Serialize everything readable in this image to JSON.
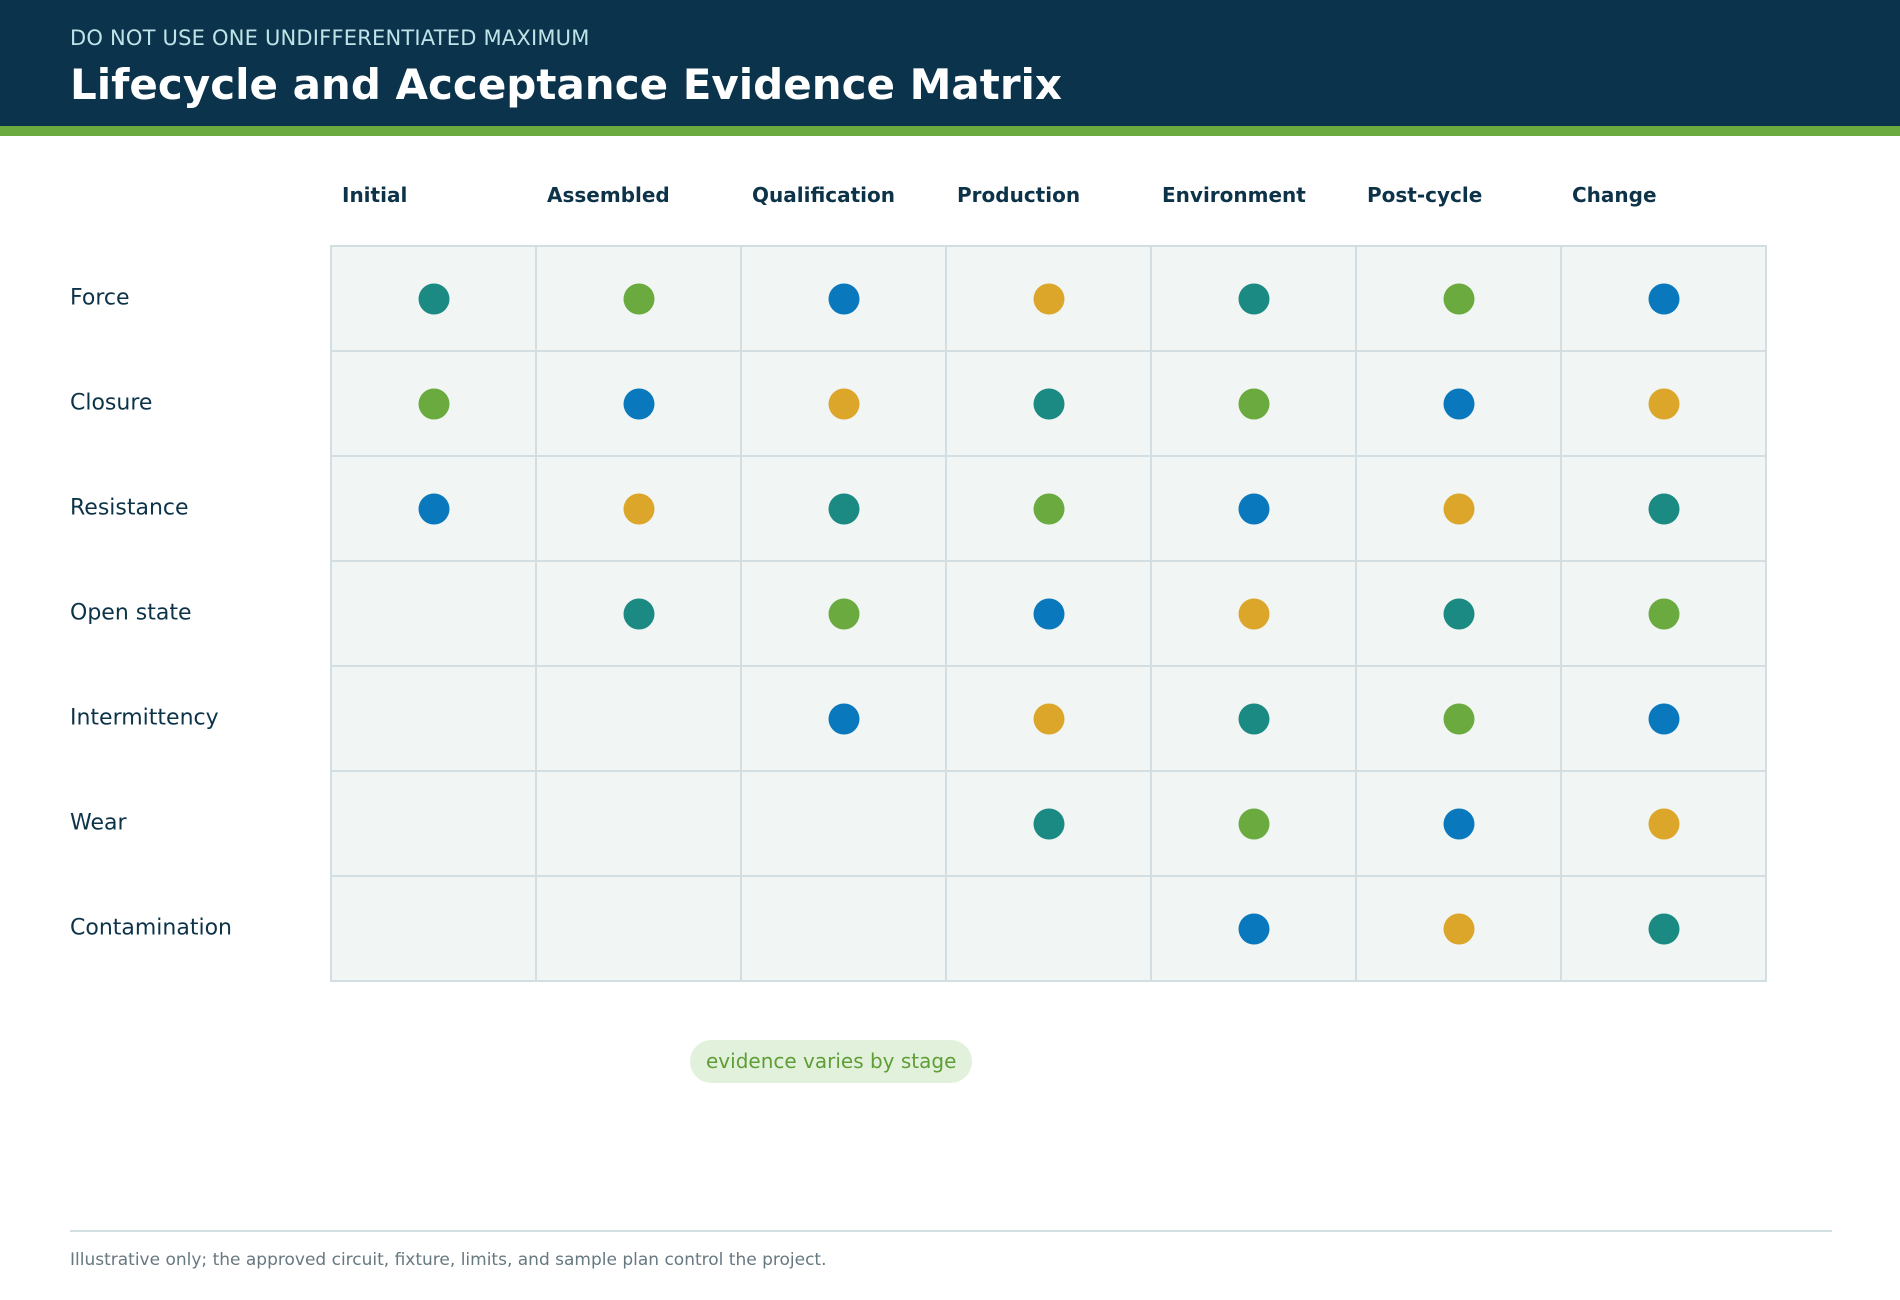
{
  "header": {
    "eyebrow": "DO NOT USE ONE UNDIFFERENTIATED MAXIMUM",
    "title": "Lifecycle and Acceptance Evidence Matrix",
    "background_color": "#0b344c",
    "rule_color": "#6aaa3e"
  },
  "matrix": {
    "columns": [
      "Initial",
      "Assembled",
      "Qualification",
      "Production",
      "Environment",
      "Post-cycle",
      "Change"
    ],
    "rows": [
      "Force",
      "Closure",
      "Resistance",
      "Open state",
      "Intermittency",
      "Wear",
      "Contamination"
    ],
    "cell_background": "#f1f5f3",
    "cell_border": "#d2dee2",
    "dot_colors": {
      "teal": "#1b8a83",
      "green": "#6aaa3e",
      "blue": "#0a78bd",
      "gold": "#dba62a"
    },
    "cells": [
      [
        "teal",
        "green",
        "blue",
        "gold",
        "teal",
        "green",
        "blue"
      ],
      [
        "green",
        "blue",
        "gold",
        "teal",
        "green",
        "blue",
        "gold"
      ],
      [
        "blue",
        "gold",
        "teal",
        "green",
        "blue",
        "gold",
        "teal"
      ],
      [
        null,
        "teal",
        "green",
        "blue",
        "gold",
        "teal",
        "green"
      ],
      [
        null,
        null,
        "blue",
        "gold",
        "teal",
        "green",
        "blue"
      ],
      [
        null,
        null,
        null,
        "teal",
        "green",
        "blue",
        "gold"
      ],
      [
        null,
        null,
        null,
        null,
        "blue",
        "gold",
        "teal"
      ]
    ]
  },
  "annotation": {
    "pill_label": "evidence varies by stage"
  },
  "footer": {
    "note": "Illustrative only; the approved circuit, fixture, limits, and sample plan control the project."
  }
}
